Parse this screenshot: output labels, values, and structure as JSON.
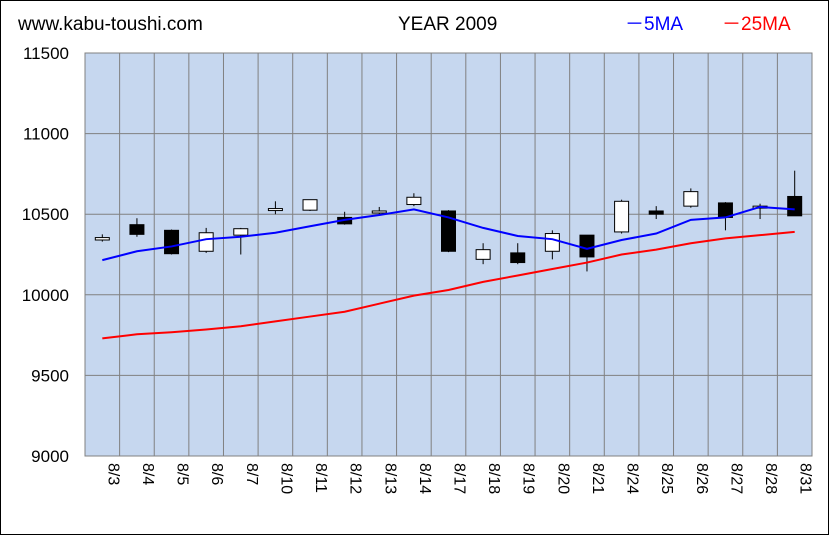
{
  "header": {
    "site": "www.kabu-toushi.com",
    "title": "YEAR 2009",
    "legend_5ma": "－5MA",
    "legend_25ma": "－25MA"
  },
  "colors": {
    "plot_bg": "#c6d7ef",
    "grid": "#808080",
    "ma5": "#0000ff",
    "ma25": "#ff0000",
    "up_candle": "#ffffff",
    "down_candle": "#000000"
  },
  "chart_data": {
    "type": "candlestick",
    "title": "YEAR 2009",
    "ylim": [
      9000,
      11500
    ],
    "yticks": [
      9000,
      9500,
      10000,
      10500,
      11000,
      11500
    ],
    "grid": true,
    "legend_position": "top-right",
    "categories": [
      "8/3",
      "8/4",
      "8/5",
      "8/6",
      "8/7",
      "8/10",
      "8/11",
      "8/12",
      "8/13",
      "8/14",
      "8/17",
      "8/18",
      "8/19",
      "8/20",
      "8/21",
      "8/24",
      "8/25",
      "8/26",
      "8/27",
      "8/28",
      "8/31"
    ],
    "candles": [
      {
        "open": 10340,
        "close": 10355,
        "high": 10375,
        "low": 10330
      },
      {
        "open": 10435,
        "close": 10375,
        "high": 10475,
        "low": 10360
      },
      {
        "open": 10400,
        "close": 10255,
        "high": 10405,
        "low": 10250
      },
      {
        "open": 10270,
        "close": 10385,
        "high": 10415,
        "low": 10260
      },
      {
        "open": 10370,
        "close": 10410,
        "high": 10415,
        "low": 10250
      },
      {
        "open": 10525,
        "close": 10535,
        "high": 10580,
        "low": 10500
      },
      {
        "open": 10525,
        "close": 10590,
        "high": 10590,
        "low": 10520
      },
      {
        "open": 10480,
        "close": 10440,
        "high": 10515,
        "low": 10435
      },
      {
        "open": 10510,
        "close": 10520,
        "high": 10545,
        "low": 10500
      },
      {
        "open": 10560,
        "close": 10605,
        "high": 10630,
        "low": 10550
      },
      {
        "open": 10520,
        "close": 10270,
        "high": 10525,
        "low": 10265
      },
      {
        "open": 10220,
        "close": 10280,
        "high": 10320,
        "low": 10190
      },
      {
        "open": 10260,
        "close": 10200,
        "high": 10320,
        "low": 10190
      },
      {
        "open": 10270,
        "close": 10380,
        "high": 10400,
        "low": 10220
      },
      {
        "open": 10370,
        "close": 10235,
        "high": 10370,
        "low": 10145
      },
      {
        "open": 10390,
        "close": 10580,
        "high": 10590,
        "low": 10380
      },
      {
        "open": 10520,
        "close": 10500,
        "high": 10550,
        "low": 10470
      },
      {
        "open": 10550,
        "close": 10640,
        "high": 10660,
        "low": 10540
      },
      {
        "open": 10570,
        "close": 10480,
        "high": 10575,
        "low": 10400
      },
      {
        "open": 10540,
        "close": 10550,
        "high": 10565,
        "low": 10470
      },
      {
        "open": 10610,
        "close": 10490,
        "high": 10770,
        "low": 10490
      }
    ],
    "series": [
      {
        "name": "5MA",
        "values": [
          10215,
          10270,
          10300,
          10345,
          10360,
          10385,
          10425,
          10465,
          10495,
          10530,
          10480,
          10415,
          10365,
          10345,
          10285,
          10340,
          10380,
          10465,
          10480,
          10545,
          10530
        ]
      },
      {
        "name": "25MA",
        "values": [
          9730,
          9755,
          9768,
          9785,
          9805,
          9835,
          9865,
          9895,
          9945,
          9995,
          10030,
          10080,
          10120,
          10160,
          10200,
          10250,
          10280,
          10320,
          10350,
          10370,
          10390
        ]
      }
    ]
  }
}
